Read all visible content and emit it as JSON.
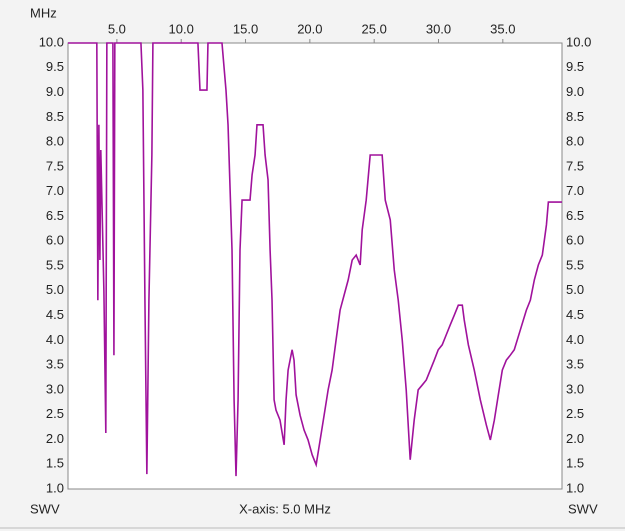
{
  "chart_data": {
    "type": "line",
    "x_unit_label": "MHz",
    "y_label": "SWV",
    "x_axis_note": "X-axis: 5.0 MHz",
    "xlim": [
      1.2,
      39.6
    ],
    "ylim": [
      1,
      10
    ],
    "xticks": [
      {
        "value": 5,
        "label": "5.0"
      },
      {
        "value": 10,
        "label": "10.0"
      },
      {
        "value": 15,
        "label": "15.0"
      },
      {
        "value": 20,
        "label": "20.0"
      },
      {
        "value": 25,
        "label": "25.0"
      },
      {
        "value": 30,
        "label": "30.0"
      },
      {
        "value": 35,
        "label": "35.0"
      }
    ],
    "yticks": [
      {
        "value": 1,
        "label": "1.0"
      },
      1.5,
      {
        "value": 2,
        "label": "2.0"
      },
      2.5,
      {
        "value": 3,
        "label": "3.0"
      },
      3.5,
      {
        "value": 4,
        "label": "4.0"
      },
      4.5,
      {
        "value": 5,
        "label": "5.0"
      },
      5.5,
      {
        "value": 6,
        "label": "6.0"
      },
      6.5,
      {
        "value": 7,
        "label": "7.0"
      },
      7.5,
      {
        "value": 8,
        "label": "8.0"
      },
      8.5,
      {
        "value": 9,
        "label": "9.0"
      },
      9.5,
      {
        "value": 10,
        "label": "10.0"
      }
    ],
    "grid": false,
    "series": [
      {
        "name": "SWV",
        "color": "#a0129c",
        "x": [
          1.2,
          3.44,
          3.52,
          3.6,
          3.68,
          3.75,
          3.99,
          4.14,
          4.22,
          4.69,
          4.77,
          4.84,
          5.08,
          6.87,
          7.02,
          7.18,
          7.33,
          7.49,
          7.72,
          7.8,
          11.3,
          11.46,
          12.0,
          12.08,
          13.17,
          13.48,
          13.64,
          13.95,
          14.11,
          14.26,
          14.42,
          14.57,
          14.73,
          15.35,
          15.51,
          15.74,
          15.89,
          16.36,
          16.52,
          16.75,
          16.91,
          17.06,
          17.22,
          17.37,
          17.68,
          18.0,
          18.15,
          18.31,
          18.62,
          18.77,
          18.93,
          19.24,
          19.55,
          19.86,
          20.18,
          20.49,
          20.8,
          21.11,
          21.42,
          21.73,
          22.04,
          22.35,
          22.67,
          22.98,
          23.29,
          23.6,
          23.91,
          24.07,
          24.38,
          24.69,
          25.62,
          25.86,
          26.25,
          26.56,
          26.87,
          27.18,
          27.49,
          27.8,
          28.11,
          28.42,
          28.74,
          29.05,
          29.36,
          29.67,
          29.98,
          30.29,
          30.6,
          30.91,
          31.23,
          31.54,
          31.85,
          32.0,
          32.32,
          32.78,
          33.25,
          33.72,
          34.03,
          34.34,
          34.65,
          34.96,
          35.27,
          35.58,
          35.89,
          36.36,
          36.83,
          37.14,
          37.45,
          37.76,
          38.07,
          38.39,
          38.54,
          38.85,
          39.6
        ],
        "values": [
          10,
          10,
          4.81,
          8.35,
          5.62,
          7.84,
          5.0,
          2.13,
          10,
          10,
          3.7,
          10,
          10,
          10,
          9.05,
          4.81,
          1.3,
          4.81,
          7.74,
          10,
          10,
          9.05,
          9.05,
          10,
          10,
          9.05,
          8.35,
          5.82,
          2.8,
          1.26,
          2.8,
          5.82,
          6.83,
          6.83,
          7.34,
          7.74,
          8.35,
          8.35,
          7.74,
          7.24,
          5.82,
          4.81,
          2.8,
          2.59,
          2.39,
          1.89,
          2.8,
          3.4,
          3.81,
          3.6,
          2.9,
          2.49,
          2.19,
          1.99,
          1.69,
          1.49,
          1.99,
          2.49,
          3.0,
          3.4,
          4.01,
          4.61,
          4.92,
          5.22,
          5.62,
          5.72,
          5.52,
          6.23,
          6.83,
          7.74,
          7.74,
          6.83,
          6.43,
          5.42,
          4.81,
          4.01,
          3.0,
          1.59,
          2.39,
          3.0,
          3.1,
          3.2,
          3.4,
          3.6,
          3.81,
          3.91,
          4.11,
          4.31,
          4.51,
          4.71,
          4.71,
          4.41,
          3.91,
          3.4,
          2.8,
          2.29,
          1.99,
          2.39,
          2.9,
          3.4,
          3.6,
          3.7,
          3.81,
          4.21,
          4.61,
          4.81,
          5.22,
          5.52,
          5.72,
          6.33,
          6.79,
          6.79,
          6.79
        ]
      }
    ]
  }
}
